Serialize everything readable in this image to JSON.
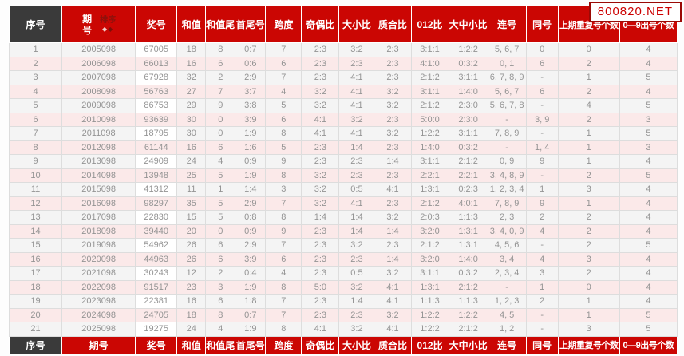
{
  "watermark": "800820.NET",
  "sort": {
    "label": "排序",
    "asc_icon": "◆",
    "desc_icon": "◆"
  },
  "colors": {
    "header_red": "#cb0603",
    "header_dark": "#3a3a3a",
    "row_light": "#f4f4f4",
    "row_pink": "#fbe9e9",
    "watermark_red": "#cc0000",
    "watermark_border": "#9b0a06",
    "data_text": "#949494"
  },
  "columns": [
    {
      "key": "seq",
      "label": "序号"
    },
    {
      "key": "period",
      "label": "期号"
    },
    {
      "key": "number",
      "label": "奖号"
    },
    {
      "key": "sum",
      "label": "和值"
    },
    {
      "key": "sum-tail",
      "label": "和值尾"
    },
    {
      "key": "first-last",
      "label": "首尾号"
    },
    {
      "key": "span",
      "label": "跨度"
    },
    {
      "key": "odd-even",
      "label": "奇偶比"
    },
    {
      "key": "big-small",
      "label": "大小比"
    },
    {
      "key": "prime-composite",
      "label": "质合比"
    },
    {
      "key": "zero-one-two",
      "label": "012比"
    },
    {
      "key": "big-mid-small",
      "label": "大中小比"
    },
    {
      "key": "consecutive",
      "label": "连号"
    },
    {
      "key": "same-digit",
      "label": "同号"
    },
    {
      "key": "repeat-count",
      "label": "上期重复号个数"
    },
    {
      "key": "digit-count",
      "label": "0—9出号个数"
    }
  ],
  "rows": [
    [
      "1",
      "2005098",
      "67005",
      "18",
      "8",
      "0:7",
      "7",
      "2:3",
      "3:2",
      "2:3",
      "3:1:1",
      "1:2:2",
      "5, 6, 7",
      "0",
      "0",
      "4"
    ],
    [
      "2",
      "2006098",
      "66013",
      "16",
      "6",
      "0:6",
      "6",
      "2:3",
      "2:3",
      "2:3",
      "4:1:0",
      "0:3:2",
      "0, 1",
      "6",
      "2",
      "4"
    ],
    [
      "3",
      "2007098",
      "67928",
      "32",
      "2",
      "2:9",
      "7",
      "2:3",
      "4:1",
      "2:3",
      "2:1:2",
      "3:1:1",
      "6, 7, 8, 9",
      "-",
      "1",
      "5"
    ],
    [
      "4",
      "2008098",
      "56763",
      "27",
      "7",
      "3:7",
      "4",
      "3:2",
      "4:1",
      "3:2",
      "3:1:1",
      "1:4:0",
      "5, 6, 7",
      "6",
      "2",
      "4"
    ],
    [
      "5",
      "2009098",
      "86753",
      "29",
      "9",
      "3:8",
      "5",
      "3:2",
      "4:1",
      "3:2",
      "2:1:2",
      "2:3:0",
      "5, 6, 7, 8",
      "-",
      "4",
      "5"
    ],
    [
      "6",
      "2010098",
      "93639",
      "30",
      "0",
      "3:9",
      "6",
      "4:1",
      "3:2",
      "2:3",
      "5:0:0",
      "2:3:0",
      "-",
      "3, 9",
      "2",
      "3"
    ],
    [
      "7",
      "2011098",
      "18795",
      "30",
      "0",
      "1:9",
      "8",
      "4:1",
      "4:1",
      "3:2",
      "1:2:2",
      "3:1:1",
      "7, 8, 9",
      "-",
      "1",
      "5"
    ],
    [
      "8",
      "2012098",
      "61144",
      "16",
      "6",
      "1:6",
      "5",
      "2:3",
      "1:4",
      "2:3",
      "1:4:0",
      "0:3:2",
      "-",
      "1, 4",
      "1",
      "3"
    ],
    [
      "9",
      "2013098",
      "24909",
      "24",
      "4",
      "0:9",
      "9",
      "2:3",
      "2:3",
      "1:4",
      "3:1:1",
      "2:1:2",
      "0, 9",
      "9",
      "1",
      "4"
    ],
    [
      "10",
      "2014098",
      "13948",
      "25",
      "5",
      "1:9",
      "8",
      "3:2",
      "2:3",
      "2:3",
      "2:2:1",
      "2:2:1",
      "3, 4, 8, 9",
      "-",
      "2",
      "5"
    ],
    [
      "11",
      "2015098",
      "41312",
      "11",
      "1",
      "1:4",
      "3",
      "3:2",
      "0:5",
      "4:1",
      "1:3:1",
      "0:2:3",
      "1, 2, 3, 4",
      "1",
      "3",
      "4"
    ],
    [
      "12",
      "2016098",
      "98297",
      "35",
      "5",
      "2:9",
      "7",
      "3:2",
      "4:1",
      "2:3",
      "2:1:2",
      "4:0:1",
      "7, 8, 9",
      "9",
      "1",
      "4"
    ],
    [
      "13",
      "2017098",
      "22830",
      "15",
      "5",
      "0:8",
      "8",
      "1:4",
      "1:4",
      "3:2",
      "2:0:3",
      "1:1:3",
      "2, 3",
      "2",
      "2",
      "4"
    ],
    [
      "14",
      "2018098",
      "39440",
      "20",
      "0",
      "0:9",
      "9",
      "2:3",
      "1:4",
      "1:4",
      "3:2:0",
      "1:3:1",
      "3, 4, 0, 9",
      "4",
      "2",
      "4"
    ],
    [
      "15",
      "2019098",
      "54962",
      "26",
      "6",
      "2:9",
      "7",
      "2:3",
      "3:2",
      "2:3",
      "2:1:2",
      "1:3:1",
      "4, 5, 6",
      "-",
      "2",
      "5"
    ],
    [
      "16",
      "2020098",
      "44963",
      "26",
      "6",
      "3:9",
      "6",
      "2:3",
      "2:3",
      "1:4",
      "3:2:0",
      "1:4:0",
      "3, 4",
      "4",
      "3",
      "4"
    ],
    [
      "17",
      "2021098",
      "30243",
      "12",
      "2",
      "0:4",
      "4",
      "2:3",
      "0:5",
      "3:2",
      "3:1:1",
      "0:3:2",
      "2, 3, 4",
      "3",
      "2",
      "4"
    ],
    [
      "18",
      "2022098",
      "91517",
      "23",
      "3",
      "1:9",
      "8",
      "5:0",
      "3:2",
      "4:1",
      "1:3:1",
      "2:1:2",
      "-",
      "1",
      "0",
      "4"
    ],
    [
      "19",
      "2023098",
      "22381",
      "16",
      "6",
      "1:8",
      "7",
      "2:3",
      "1:4",
      "4:1",
      "1:1:3",
      "1:1:3",
      "1, 2, 3",
      "2",
      "1",
      "4"
    ],
    [
      "20",
      "2024098",
      "24705",
      "18",
      "8",
      "0:7",
      "7",
      "2:3",
      "2:3",
      "3:2",
      "1:2:2",
      "1:2:2",
      "4, 5",
      "-",
      "1",
      "5"
    ],
    [
      "21",
      "2025098",
      "19275",
      "24",
      "4",
      "1:9",
      "8",
      "4:1",
      "3:2",
      "4:1",
      "1:2:2",
      "2:1:2",
      "1, 2",
      "-",
      "3",
      "5"
    ]
  ]
}
